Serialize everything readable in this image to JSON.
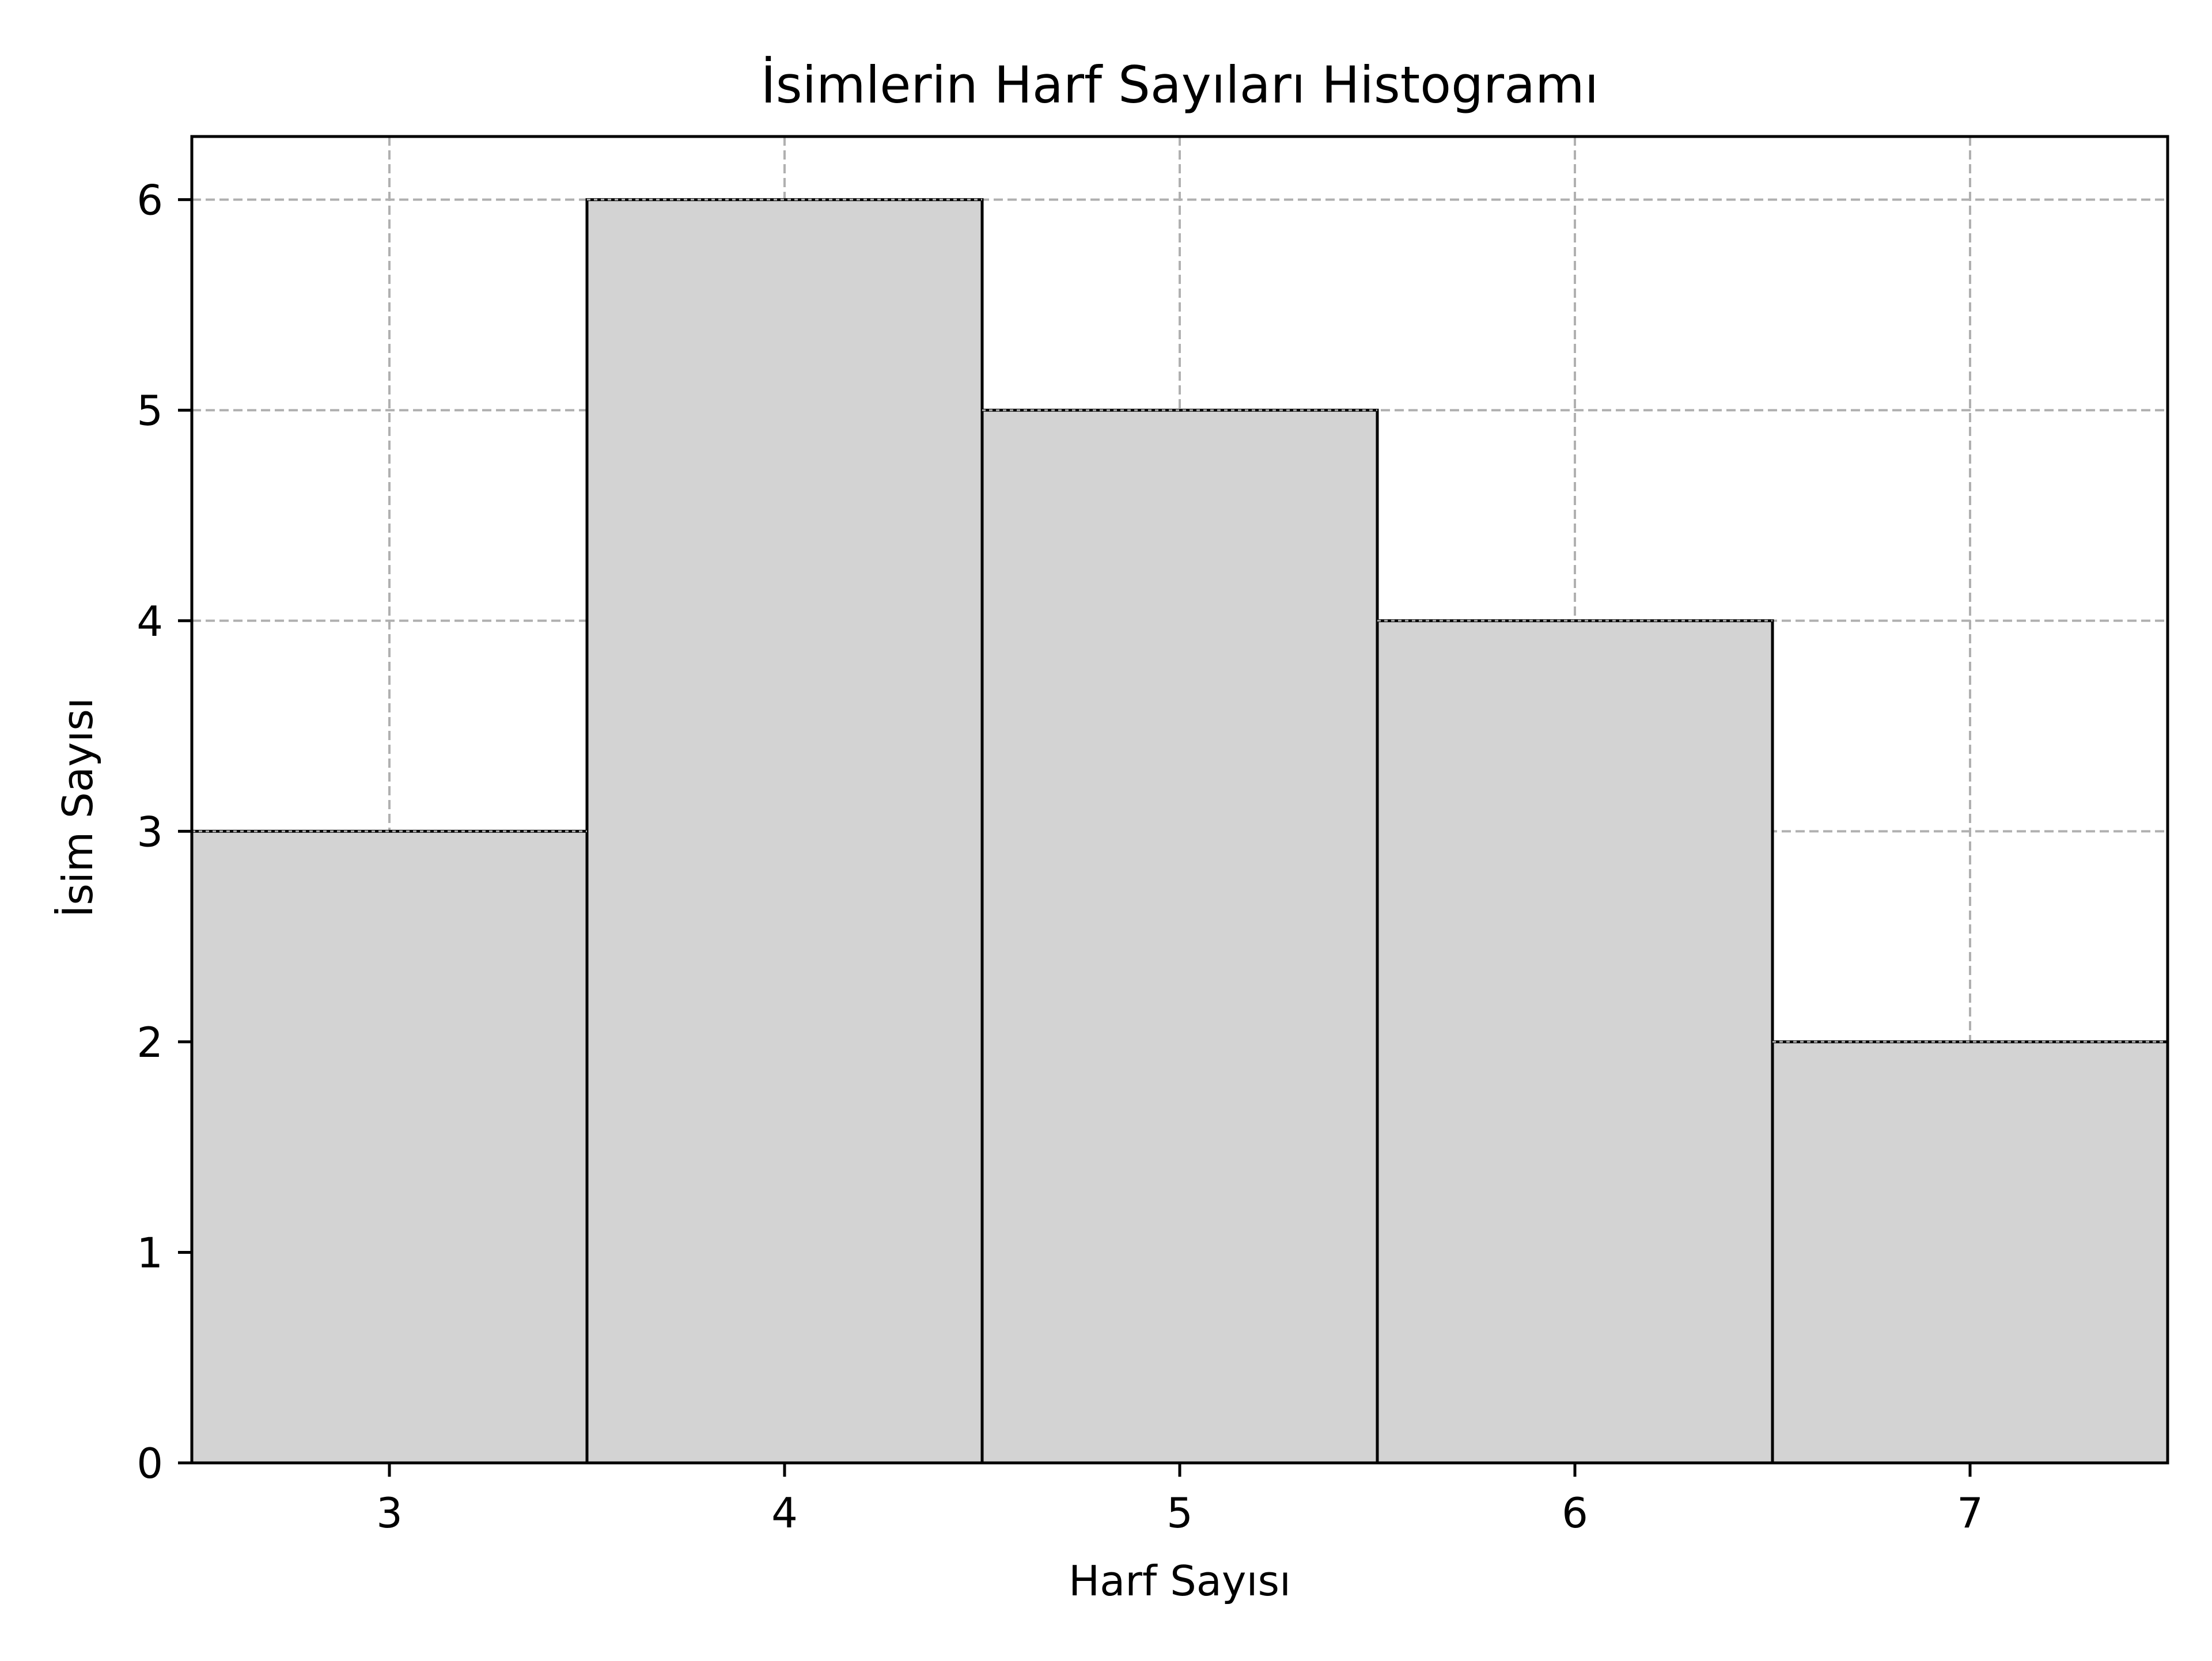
{
  "chart_data": {
    "type": "bar",
    "title": "İsimlerin Harf Sayıları Histogramı",
    "xlabel": "Harf Sayısı",
    "ylabel": "İsim Sayısı",
    "categories": [
      "3",
      "4",
      "5",
      "6",
      "7"
    ],
    "x": [
      3,
      4,
      5,
      6,
      7
    ],
    "values": [
      3,
      6,
      5,
      4,
      2
    ],
    "xlim": [
      2.5,
      7.5
    ],
    "ylim": [
      0,
      6.3
    ],
    "xticks": [
      "3",
      "4",
      "5",
      "6",
      "7"
    ],
    "yticks": [
      "0",
      "1",
      "2",
      "3",
      "4",
      "5",
      "6"
    ],
    "grid": true,
    "bar_color": "#d3d3d3",
    "edge_color": "#000000",
    "grid_color": "#b0b0b0"
  }
}
